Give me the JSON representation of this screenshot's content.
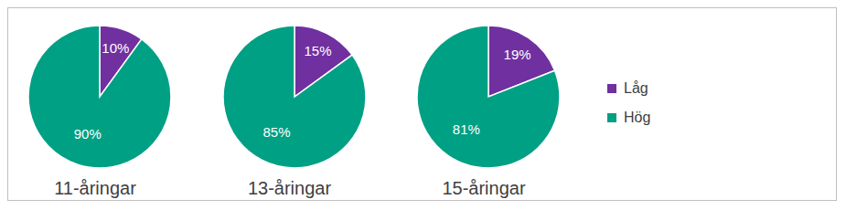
{
  "chart_data": [
    {
      "type": "pie",
      "title": "11-åringar",
      "categories": [
        "Låg",
        "Hög"
      ],
      "values": [
        10,
        90
      ],
      "value_labels": [
        "10%",
        "90%"
      ],
      "colors": [
        "#7030a0",
        "#00a084"
      ],
      "data_labels": true
    },
    {
      "type": "pie",
      "title": "13-åringar",
      "categories": [
        "Låg",
        "Hög"
      ],
      "values": [
        15,
        85
      ],
      "value_labels": [
        "15%",
        "85%"
      ],
      "colors": [
        "#7030a0",
        "#00a084"
      ],
      "data_labels": true
    },
    {
      "type": "pie",
      "title": "15-åringar",
      "categories": [
        "Låg",
        "Hög"
      ],
      "values": [
        19,
        81
      ],
      "value_labels": [
        "19%",
        "81%"
      ],
      "colors": [
        "#7030a0",
        "#00a084"
      ],
      "data_labels": true,
      "legend": "right"
    }
  ]
}
